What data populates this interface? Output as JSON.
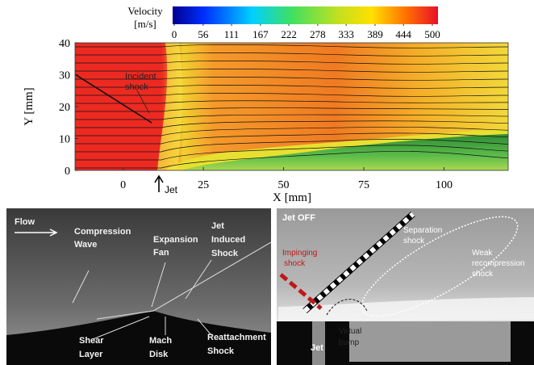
{
  "chart_data": {
    "type": "field",
    "xlabel": "X [mm]",
    "ylabel": "Y [mm]",
    "xlim": [
      -15,
      120
    ],
    "ylim": [
      0,
      40
    ],
    "xticks": [
      0,
      25,
      50,
      75,
      100
    ],
    "yticks": [
      0,
      10,
      20,
      30,
      40
    ],
    "colorbar": {
      "label": [
        "Velocity",
        "[m/s]"
      ],
      "lim": [
        0,
        500
      ],
      "ticks": [
        0,
        56,
        111,
        167,
        222,
        278,
        333,
        389,
        444,
        500
      ]
    },
    "annotations": {
      "incident": [
        "Incident",
        "shock"
      ],
      "jet": "Jet"
    }
  },
  "panels": {
    "left": {
      "flow": "Flow",
      "compression": [
        "Compression",
        "Wave"
      ],
      "expansion": [
        "Expansion",
        "Fan"
      ],
      "jet_shock": [
        "Jet",
        "Induced",
        "Shock"
      ],
      "shear": [
        "Shear",
        "Layer"
      ],
      "mach": [
        "Mach",
        "Disk"
      ],
      "reattachment": [
        "Reattachment",
        "Shock"
      ]
    },
    "right": {
      "title": "Jet OFF",
      "impinging": [
        "Impinging",
        "shock"
      ],
      "separation": [
        "Separation",
        "shock"
      ],
      "weak": [
        "Weak",
        "recompression",
        "shock"
      ],
      "bump": [
        "Virtual",
        "bump"
      ],
      "jet": "Jet"
    }
  }
}
